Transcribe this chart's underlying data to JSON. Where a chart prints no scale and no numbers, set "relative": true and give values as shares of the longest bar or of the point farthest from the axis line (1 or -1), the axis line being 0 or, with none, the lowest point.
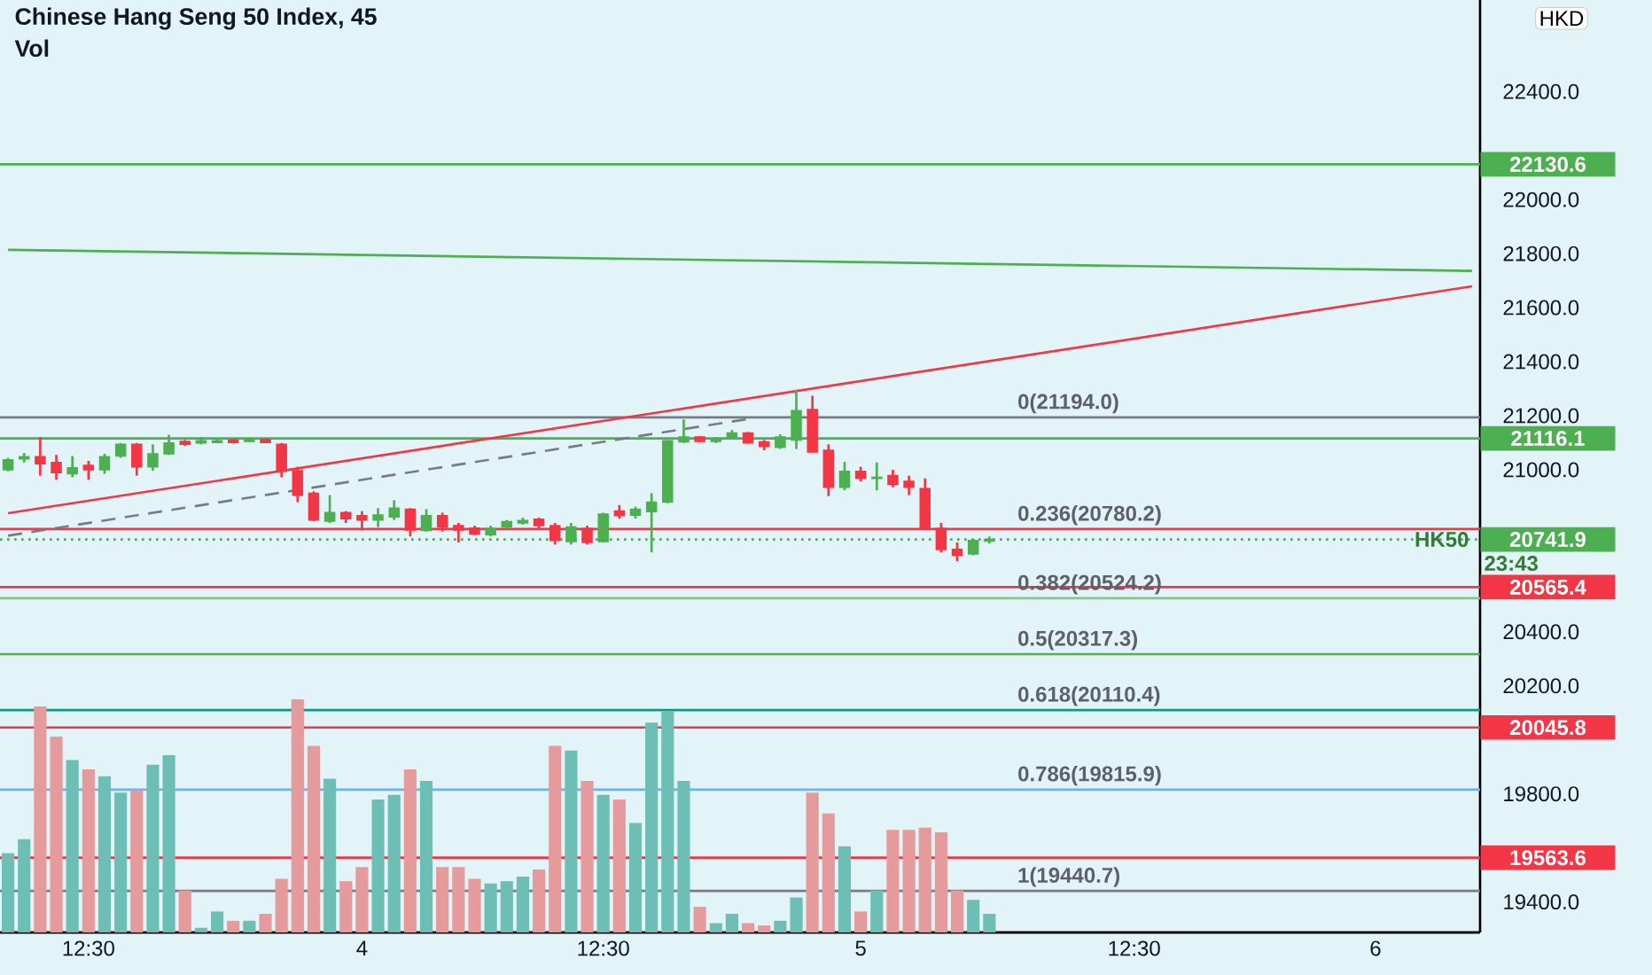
{
  "chart_data": [
    {
      "type": "candlestick",
      "title": "Chinese Hang Seng 50 Index, 45",
      "ylabel": "HKD",
      "categories": [
        null,
        null,
        null,
        null,
        null,
        "12:30",
        null,
        null,
        null,
        null,
        null,
        null,
        null,
        null,
        null,
        null,
        null,
        null,
        null,
        null,
        null,
        null,
        "4",
        null,
        null,
        null,
        null,
        null,
        null,
        null,
        null,
        null,
        null,
        null,
        null,
        null,
        null,
        "12:30",
        null,
        null,
        null,
        null,
        null,
        null,
        null,
        null,
        null,
        null,
        null,
        null,
        null,
        null,
        null,
        "5",
        null,
        null,
        null,
        null,
        null,
        null,
        null,
        null,
        null,
        null,
        null,
        null,
        null,
        null,
        null,
        null,
        "12:30",
        null,
        null,
        null,
        null,
        null,
        null,
        null,
        null,
        null,
        null,
        null,
        null,
        null,
        null,
        "6",
        null,
        null,
        null,
        null,
        null,
        null
      ],
      "ohlc": [
        [
          21000,
          21044,
          20994,
          21037
        ],
        [
          21040,
          21062,
          21027,
          21048
        ],
        [
          21048,
          21121,
          20978,
          21022
        ],
        [
          21027,
          21055,
          20963,
          20989
        ],
        [
          20985,
          21051,
          20972,
          21007
        ],
        [
          21016,
          21033,
          20963,
          21000
        ],
        [
          21000,
          21059,
          20985,
          21048
        ],
        [
          21051,
          21099,
          21044,
          21094
        ],
        [
          21094,
          21099,
          20978,
          21011
        ],
        [
          21011,
          21094,
          20996,
          21059
        ],
        [
          21059,
          21129,
          21055,
          21099
        ],
        [
          21105,
          21110,
          21088,
          21094
        ],
        [
          21099,
          21121,
          21094,
          21107
        ],
        [
          21101,
          21112,
          21099,
          21107
        ],
        [
          21110,
          21112,
          21097,
          21101
        ],
        [
          21105,
          21116,
          21103,
          21112
        ],
        [
          21112,
          21116,
          21099,
          21101
        ],
        [
          21094,
          21099,
          20972,
          20994
        ],
        [
          20996,
          21011,
          20880,
          20906
        ],
        [
          20913,
          20920,
          20810,
          20814
        ],
        [
          20810,
          20906,
          20803,
          20841
        ],
        [
          20841,
          20847,
          20803,
          20819
        ],
        [
          20830,
          20847,
          20775,
          20814
        ],
        [
          20814,
          20858,
          20788,
          20832
        ],
        [
          20825,
          20887,
          20814,
          20858
        ],
        [
          20854,
          20858,
          20753,
          20777
        ],
        [
          20775,
          20854,
          20771,
          20830
        ],
        [
          20830,
          20841,
          20771,
          20788
        ],
        [
          20793,
          20803,
          20731,
          20777
        ],
        [
          20784,
          20793,
          20758,
          20762
        ],
        [
          20760,
          20793,
          20753,
          20782
        ],
        [
          20788,
          20814,
          20782,
          20808
        ],
        [
          20803,
          20823,
          20797,
          20812
        ],
        [
          20817,
          20823,
          20782,
          20793
        ],
        [
          20793,
          20803,
          20723,
          20738
        ],
        [
          20734,
          20803,
          20723,
          20788
        ],
        [
          20782,
          20793,
          20723,
          20731
        ],
        [
          20734,
          20841,
          20731,
          20836
        ],
        [
          20847,
          20869,
          20819,
          20830
        ],
        [
          20832,
          20863,
          20819,
          20854
        ],
        [
          20845,
          20913,
          20694,
          20880
        ],
        [
          20880,
          21110,
          20876,
          21107
        ],
        [
          21103,
          21186,
          21099,
          21121
        ],
        [
          21121,
          21125,
          21103,
          21105
        ],
        [
          21105,
          21121,
          21099,
          21114
        ],
        [
          21116,
          21147,
          21112,
          21136
        ],
        [
          21136,
          21140,
          21097,
          21099
        ],
        [
          21103,
          21110,
          21072,
          21086
        ],
        [
          21083,
          21131,
          21077,
          21121
        ],
        [
          21110,
          21296,
          21077,
          21219
        ],
        [
          21223,
          21274,
          21066,
          21066
        ],
        [
          21072,
          21094,
          20902,
          20935
        ],
        [
          20935,
          21029,
          20924,
          20994
        ],
        [
          20994,
          21011,
          20957,
          20968
        ],
        [
          20968,
          21027,
          20924,
          20972
        ],
        [
          20978,
          21000,
          20935,
          20946
        ],
        [
          20957,
          20978,
          20906,
          20935
        ],
        [
          20930,
          20968,
          20782,
          20782
        ],
        [
          20782,
          20803,
          20694,
          20705
        ],
        [
          20705,
          20731,
          20661,
          20683
        ],
        [
          20688,
          20744,
          20683,
          20738
        ],
        [
          20736,
          20753,
          20727,
          20742
        ],
        null,
        null,
        null,
        null,
        null,
        null,
        null,
        null,
        null,
        null,
        null,
        null,
        null,
        null,
        null,
        null,
        null,
        null,
        null,
        null,
        null,
        null,
        null,
        null,
        null,
        null,
        null,
        null,
        null,
        null
      ],
      "series": [
        {
          "type": "line",
          "color": "#f23645",
          "values": [
            20839,
            null,
            null,
            null,
            null,
            null,
            null,
            null,
            null,
            null,
            null,
            null,
            null,
            null,
            null,
            null,
            null,
            null,
            null,
            null,
            null,
            null,
            null,
            null,
            null,
            null,
            null,
            null,
            null,
            null,
            null,
            null,
            null,
            null,
            null,
            null,
            null,
            null,
            null,
            null,
            null,
            null,
            null,
            null,
            null,
            null,
            null,
            null,
            null,
            null,
            null,
            null,
            null,
            null,
            null,
            null,
            null,
            null,
            null,
            null,
            null,
            null,
            null,
            null,
            null,
            null,
            null,
            null,
            null,
            null,
            null,
            null,
            null,
            null,
            null,
            null,
            null,
            null,
            null,
            null,
            null,
            null,
            null,
            null,
            null,
            null,
            null,
            null,
            null,
            null,
            null,
            21679
          ]
        },
        {
          "type": "line",
          "color": "#4caf50",
          "values": [
            21814,
            null,
            null,
            null,
            null,
            null,
            null,
            null,
            null,
            null,
            null,
            null,
            null,
            null,
            null,
            null,
            null,
            null,
            null,
            null,
            null,
            null,
            null,
            null,
            null,
            null,
            null,
            null,
            null,
            null,
            null,
            null,
            null,
            null,
            null,
            null,
            null,
            null,
            null,
            null,
            null,
            null,
            null,
            null,
            null,
            null,
            null,
            null,
            null,
            null,
            null,
            null,
            null,
            null,
            null,
            null,
            null,
            null,
            null,
            null,
            null,
            null,
            null,
            null,
            null,
            null,
            null,
            null,
            null,
            null,
            null,
            null,
            null,
            null,
            null,
            null,
            null,
            null,
            null,
            null,
            null,
            null,
            null,
            null,
            null,
            null,
            null,
            null,
            null,
            null,
            null,
            21736
          ]
        },
        {
          "type": "line",
          "color": "#787b86",
          "line_style": "dashed",
          "values": [
            20756,
            null,
            null,
            null,
            null,
            null,
            null,
            null,
            null,
            null,
            null,
            null,
            null,
            null,
            null,
            null,
            null,
            null,
            null,
            null,
            null,
            null,
            null,
            null,
            null,
            null,
            null,
            null,
            null,
            null,
            null,
            null,
            null,
            null,
            null,
            null,
            null,
            null,
            null,
            null,
            null,
            null,
            null,
            null,
            null,
            null,
            21188,
            null,
            null,
            null,
            null,
            null,
            null,
            null,
            null,
            null,
            null,
            null,
            null,
            null,
            null,
            null,
            null,
            null,
            null,
            null,
            null,
            null,
            null,
            null,
            null,
            null,
            null,
            null,
            null,
            null,
            null,
            null,
            null,
            null,
            null,
            null,
            null,
            null,
            null,
            null,
            null,
            null,
            null,
            null,
            null,
            null
          ]
        }
      ],
      "ylim": [
        19287,
        22739
      ],
      "yticks": [
        {
          "value": 19400,
          "label": "19400.0"
        },
        {
          "value": 19800,
          "label": "19800.0"
        },
        {
          "value": 20200,
          "label": "20200.0"
        },
        {
          "value": 20400,
          "label": "20400.0"
        },
        {
          "value": 21000,
          "label": "21000.0"
        },
        {
          "value": 21200,
          "label": "21200.0"
        },
        {
          "value": 21400,
          "label": "21400.0"
        },
        {
          "value": 21600,
          "label": "21600.0"
        },
        {
          "value": 21800,
          "label": "21800.0"
        },
        {
          "value": 22000,
          "label": "22000.0"
        },
        {
          "value": 22400,
          "label": "22400.0"
        }
      ],
      "ref_lines": [
        {
          "axis": "y",
          "value": 22130.6,
          "label": "22130.6",
          "color": "#4caf50"
        },
        {
          "axis": "y",
          "value": 21116.1,
          "label": "21116.1",
          "color": "#4caf50"
        },
        {
          "axis": "y",
          "value": 20741.9,
          "label": "20741.9",
          "color": "#4caf50",
          "line_style": "dotted"
        },
        {
          "axis": "y",
          "value": 20565.4,
          "label": "20565.4",
          "color": "#f23645"
        },
        {
          "axis": "y",
          "value": 20045.8,
          "label": "20045.8",
          "color": "#f23645"
        },
        {
          "axis": "y",
          "value": 19563.6,
          "label": "19563.6",
          "color": "#f23645"
        },
        {
          "axis": "y",
          "value": 21194.0,
          "color": "#787b86"
        },
        {
          "axis": "y",
          "value": 20780.2,
          "color": "#f23645"
        },
        {
          "axis": "y",
          "value": 20524.2,
          "color": "#81c784"
        },
        {
          "axis": "y",
          "value": 20317.3,
          "color": "#4caf50"
        },
        {
          "axis": "y",
          "value": 20110.4,
          "color": "#089981"
        },
        {
          "axis": "y",
          "value": 19815.9,
          "color": "#64b5f6"
        },
        {
          "axis": "y",
          "value": 19440.7,
          "color": "#787b86"
        }
      ],
      "annotations": [
        {
          "text": "0(21194.0)",
          "y": 21194.0
        },
        {
          "text": "0.236(20780.2)",
          "y": 20780.2
        },
        {
          "text": "0.382(20524.2)",
          "y": 20524.2
        },
        {
          "text": "0.5(20317.3)",
          "y": 20317.3
        },
        {
          "text": "0.618(20110.4)",
          "y": 20110.4
        },
        {
          "text": "0.786(19815.9)",
          "y": 19815.9
        },
        {
          "text": "1(19440.7)",
          "y": 19440.7
        },
        "HK50",
        "23:43"
      ]
    },
    {
      "type": "bar",
      "title": "Vol",
      "relative": true,
      "categories": [
        null,
        null,
        null,
        null,
        null,
        null,
        null,
        null,
        null,
        null,
        null,
        null,
        null,
        null,
        null,
        null,
        null,
        null,
        null,
        null,
        null,
        null,
        null,
        null,
        null,
        null,
        null,
        null,
        null,
        null,
        null,
        null,
        null,
        null,
        null,
        null,
        null,
        null,
        null,
        null,
        null,
        null,
        null,
        null,
        null,
        null,
        null,
        null,
        null,
        null,
        null,
        null,
        null,
        null,
        null,
        null,
        null,
        null,
        null,
        null,
        null,
        null,
        null,
        null,
        null,
        null,
        null,
        null,
        null,
        null,
        null,
        null,
        null,
        null,
        null,
        null,
        null,
        null,
        null,
        null,
        null,
        null,
        null,
        null,
        null,
        null,
        null,
        null,
        null,
        null,
        null,
        null
      ],
      "values": [
        0.34,
        0.4,
        0.97,
        0.84,
        0.74,
        0.7,
        0.67,
        0.6,
        0.61,
        0.72,
        0.76,
        0.18,
        0.02,
        0.09,
        0.05,
        0.05,
        0.08,
        0.23,
        1,
        0.8,
        0.66,
        0.22,
        0.28,
        0.57,
        0.59,
        0.7,
        0.65,
        0.28,
        0.28,
        0.23,
        0.21,
        0.22,
        0.24,
        0.27,
        0.8,
        0.78,
        0.65,
        0.59,
        0.57,
        0.47,
        0.9,
        0.95,
        0.65,
        0.11,
        0.04,
        0.08,
        0.04,
        0.03,
        0.05,
        0.15,
        0.6,
        0.51,
        0.37,
        0.09,
        0.18,
        0.44,
        0.44,
        0.45,
        0.43,
        0.18,
        0.14,
        0.08,
        null,
        null,
        null,
        null,
        null,
        null,
        null,
        null,
        null,
        null,
        null,
        null,
        null,
        null,
        null,
        null,
        null,
        null,
        null,
        null,
        null,
        null,
        null,
        null,
        null,
        null,
        null,
        null,
        null,
        null
      ],
      "colors": [
        "#6dbfb6",
        "#6dbfb6",
        "#e59a9c",
        "#e59a9c",
        "#6dbfb6",
        "#e59a9c",
        "#6dbfb6",
        "#6dbfb6",
        "#e59a9c",
        "#6dbfb6",
        "#6dbfb6",
        "#e59a9c",
        "#6dbfb6",
        "#6dbfb6",
        "#e59a9c",
        "#6dbfb6",
        "#e59a9c",
        "#e59a9c",
        "#e59a9c",
        "#e59a9c",
        "#6dbfb6",
        "#e59a9c",
        "#e59a9c",
        "#6dbfb6",
        "#6dbfb6",
        "#e59a9c",
        "#6dbfb6",
        "#e59a9c",
        "#e59a9c",
        "#e59a9c",
        "#6dbfb6",
        "#6dbfb6",
        "#6dbfb6",
        "#e59a9c",
        "#e59a9c",
        "#6dbfb6",
        "#e59a9c",
        "#6dbfb6",
        "#e59a9c",
        "#6dbfb6",
        "#6dbfb6",
        "#6dbfb6",
        "#6dbfb6",
        "#e59a9c",
        "#6dbfb6",
        "#6dbfb6",
        "#e59a9c",
        "#e59a9c",
        "#6dbfb6",
        "#6dbfb6",
        "#e59a9c",
        "#e59a9c",
        "#6dbfb6",
        "#e59a9c",
        "#6dbfb6",
        "#e59a9c",
        "#e59a9c",
        "#e59a9c",
        "#e59a9c",
        "#e59a9c",
        "#6dbfb6",
        "#6dbfb6",
        null,
        null,
        null,
        null,
        null,
        null,
        null,
        null,
        null,
        null,
        null,
        null,
        null,
        null,
        null,
        null,
        null,
        null,
        null,
        null,
        null,
        null,
        null,
        null,
        null,
        null,
        null,
        null,
        null,
        null
      ]
    }
  ]
}
